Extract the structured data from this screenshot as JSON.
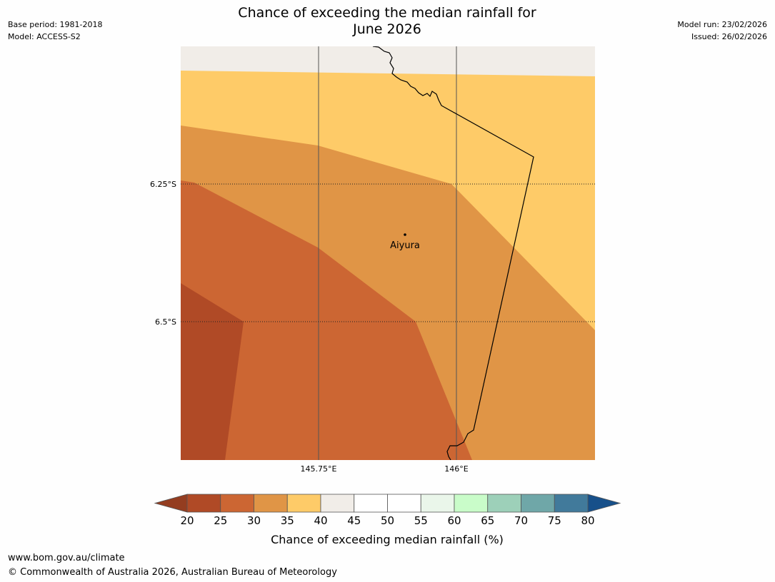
{
  "title": {
    "line1": "Chance of exceeding the median rainfall for",
    "line2": "June 2026"
  },
  "meta_left": {
    "base_period": "Base period: 1981-2018",
    "model": "Model: ACCESS-S2"
  },
  "meta_right": {
    "model_run": "Model run: 23/02/2026",
    "issued": "Issued: 26/02/2026"
  },
  "map": {
    "lat_labels": [
      "6.25°S",
      "6.5°S"
    ],
    "lon_labels": [
      "145.75°E",
      "146°E"
    ],
    "place": {
      "name": "Aiyura"
    },
    "zone_colors": {
      "20-25": "#b04a26",
      "25-30": "#cc6633",
      "30-35": "#e09546",
      "35-40": "#fecb68",
      "40-45": "#f1ede8"
    }
  },
  "legend": {
    "title": "Chance of exceeding median rainfall (%)",
    "ticks": [
      "20",
      "25",
      "30",
      "35",
      "40",
      "45",
      "50",
      "55",
      "60",
      "65",
      "70",
      "75",
      "80"
    ],
    "low_extend_color": "#943d20",
    "high_extend_color": "#17508a",
    "colors": [
      "#b04a26",
      "#cc6633",
      "#e09546",
      "#fecb68",
      "#f1ede8",
      "#ffffff",
      "#ffffff",
      "#eaf6ea",
      "#c9fcc9",
      "#9dd0b9",
      "#6fa7a8",
      "#417a9b"
    ]
  },
  "footer": {
    "url": "www.bom.gov.au/climate",
    "copyright": "© Commonwealth of Australia 2026, Australian Bureau of Meteorology"
  }
}
